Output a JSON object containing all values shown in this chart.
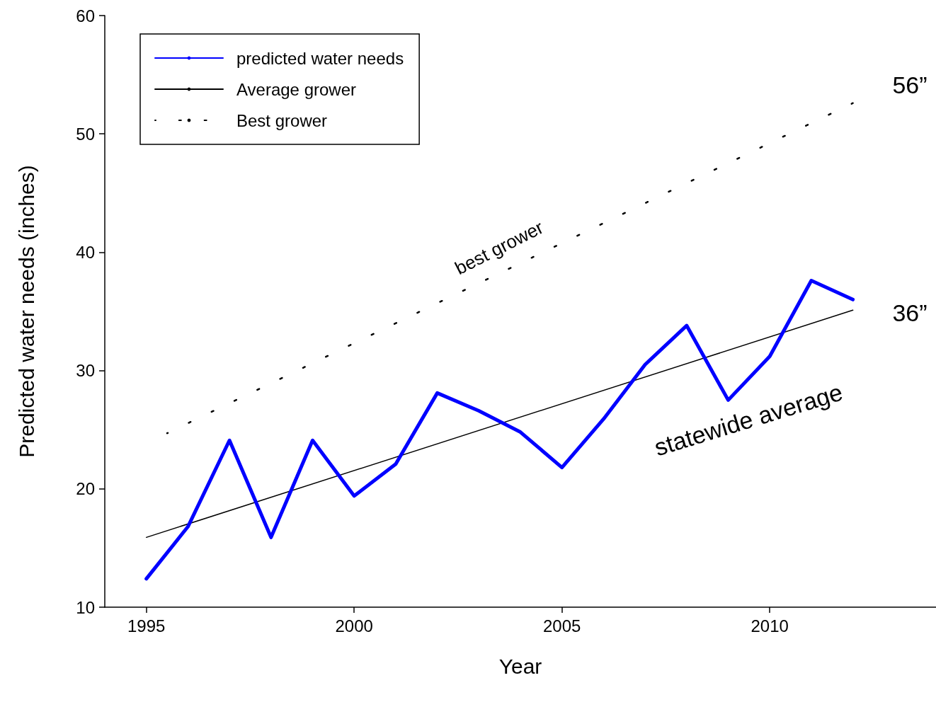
{
  "chart_data": {
    "type": "line",
    "xlabel": "Year",
    "ylabel": "Predicted water needs (inches)",
    "xlim": [
      1994,
      2014
    ],
    "xticks": [
      1995,
      2000,
      2005,
      2010
    ],
    "ylim": [
      10,
      60
    ],
    "yticks": [
      10,
      20,
      30,
      40,
      50,
      60
    ],
    "legend": "top left",
    "grid": false,
    "marker": "none",
    "series": [
      {
        "name": "predicted water needs",
        "color": "#0000ff",
        "line_style": "solid",
        "x": [
          1995,
          1996,
          1997,
          1998,
          1999,
          2000,
          2001,
          2002,
          2003,
          2004,
          2005,
          2006,
          2007,
          2008,
          2009,
          2010,
          2011,
          2012
        ],
        "values": [
          12.4,
          16.8,
          24.1,
          15.9,
          24.1,
          19.4,
          22.1,
          28.1,
          26.6,
          24.8,
          21.8,
          25.9,
          30.5,
          33.8,
          27.5,
          31.2,
          37.6,
          36.0
        ]
      },
      {
        "name": "Average grower",
        "color": "#000000",
        "line_style": "solid",
        "x": [
          1995,
          2012
        ],
        "values": [
          15.9,
          35.1
        ]
      },
      {
        "name": "Best grower",
        "color": "#000000",
        "line_style": "dotted",
        "x": [
          1995.5,
          2012
        ],
        "values": [
          24.7,
          52.6
        ]
      }
    ],
    "annotations": [
      "56”",
      "36”",
      "best grower",
      "statewide average"
    ]
  }
}
